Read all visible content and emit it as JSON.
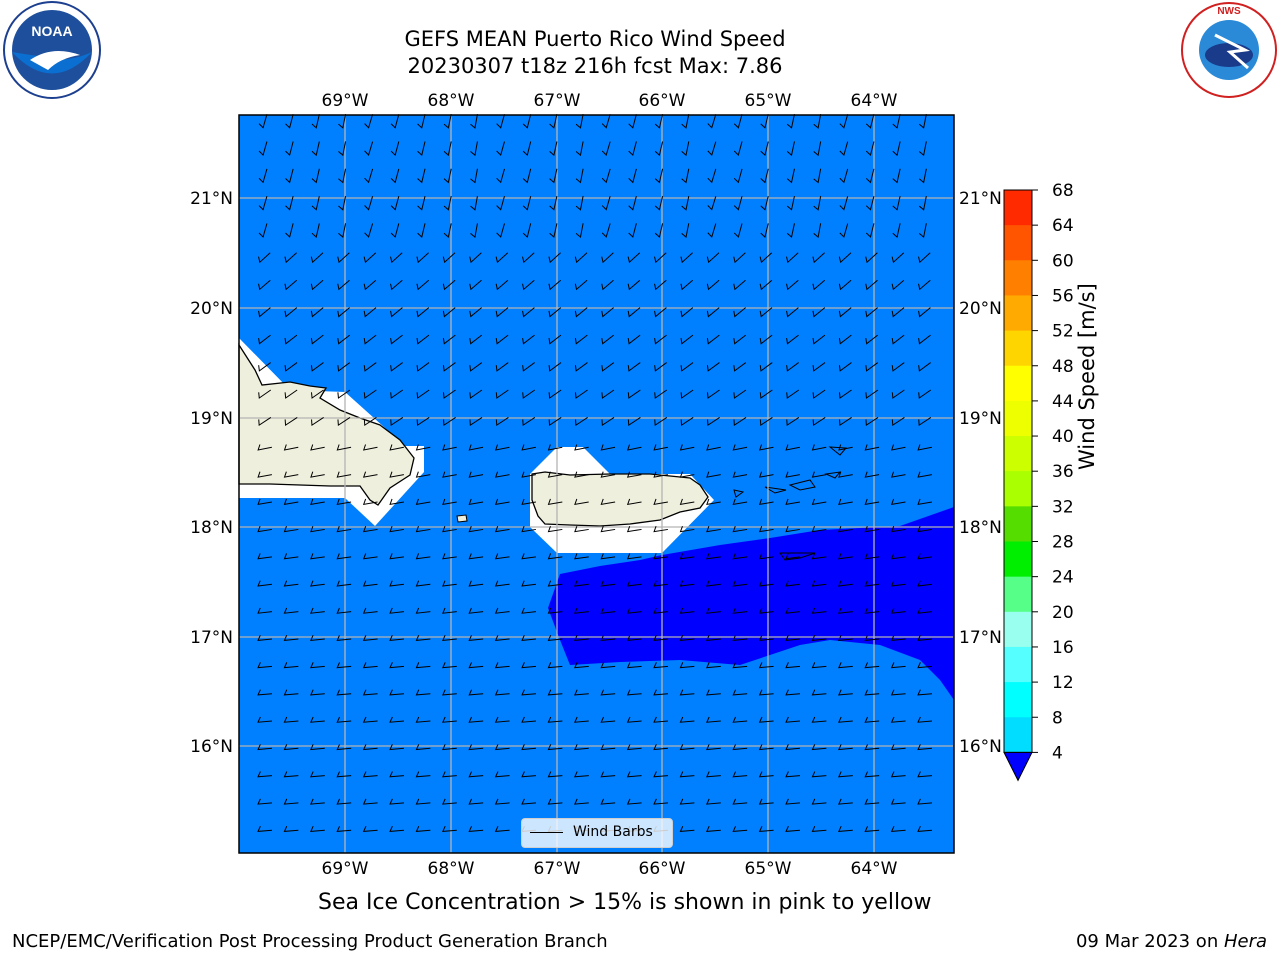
{
  "title": {
    "line1": "GEFS MEAN Puerto Rico Wind Speed",
    "line2": "20230307 t18z 216h fcst   Max: 7.86"
  },
  "map": {
    "lon_labels": [
      "69°W",
      "68°W",
      "67°W",
      "66°W",
      "65°W",
      "64°W"
    ],
    "lat_labels": [
      "21°N",
      "20°N",
      "19°N",
      "18°N",
      "17°N",
      "16°N"
    ],
    "ocean_color": "#0080ff",
    "high_wind_color": "#0000ff",
    "land_color": "#efefdd",
    "legend_label": "Wind Barbs"
  },
  "colorbar": {
    "label": "Wind Speed [m/s]",
    "ticks": [
      "68",
      "64",
      "60",
      "56",
      "52",
      "48",
      "44",
      "40",
      "36",
      "32",
      "28",
      "24",
      "20",
      "16",
      "12",
      "8",
      "4"
    ],
    "colors": [
      "#ff0000",
      "#ff2a00",
      "#ff5500",
      "#ff8000",
      "#ffaa00",
      "#ffd500",
      "#ffff00",
      "#eeff00",
      "#ccff00",
      "#aaff00",
      "#55dd00",
      "#00ee00",
      "#55ff88",
      "#99ffee",
      "#55ffff",
      "#00ffff",
      "#00ddff",
      "#0080ff",
      "#0000ff"
    ]
  },
  "caption": "Sea Ice Concentration > 15% is shown in pink to yellow",
  "footer": {
    "left": "NCEP/EMC/Verification Post Processing Product Generation Branch",
    "right_prefix": "09 Mar 2023 on ",
    "right_machine": "Hera"
  },
  "logos": {
    "left": "NOAA",
    "right": "NATIONAL WEATHER SERVICE"
  }
}
